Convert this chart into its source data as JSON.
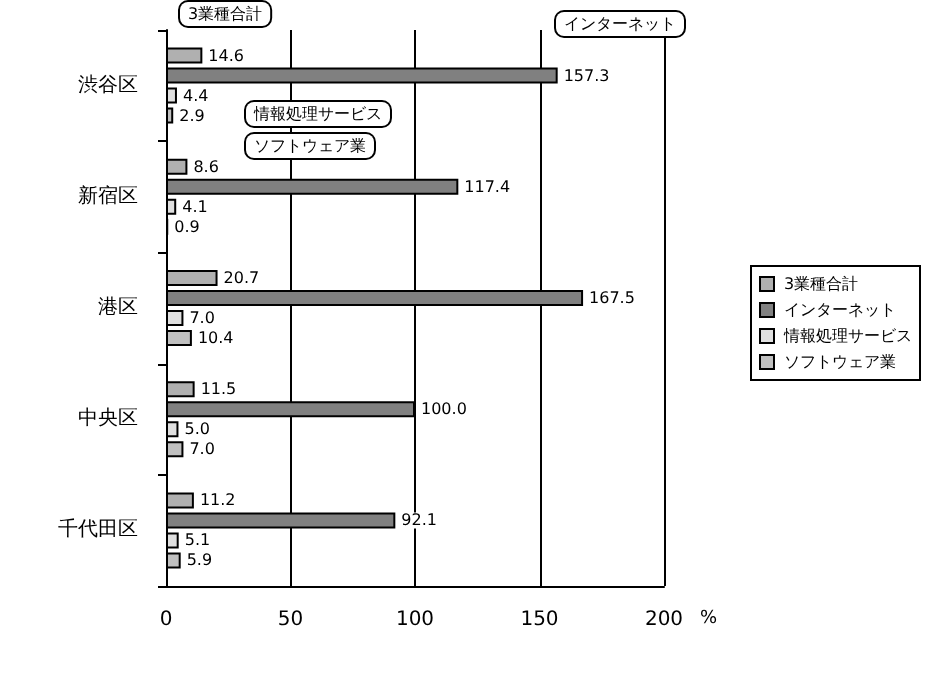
{
  "chart_data": {
    "type": "bar",
    "orientation": "horizontal",
    "categories": [
      "渋谷区",
      "新宿区",
      "港区",
      "中央区",
      "千代田区"
    ],
    "series": [
      {
        "name": "3業種合計",
        "color": "#b0b0b0",
        "values": [
          14.6,
          8.6,
          20.7,
          11.5,
          11.2
        ],
        "value_labels": [
          "14.6",
          "8.6",
          "20.7",
          "11.5",
          "11.2"
        ]
      },
      {
        "name": "インターネット",
        "color": "#808080",
        "values": [
          157.3,
          117.4,
          167.5,
          100.0,
          92.1
        ],
        "value_labels": [
          "157.3",
          "117.4",
          "167.5",
          "100.0",
          "92.1"
        ]
      },
      {
        "name": "情報処理サービス",
        "color": "#e0e0e0",
        "values": [
          4.4,
          4.1,
          7.0,
          5.0,
          5.1
        ],
        "value_labels": [
          "4.4",
          "4.1",
          "7.0",
          "5.0",
          "5.1"
        ]
      },
      {
        "name": "ソフトウェア業",
        "color": "#c0c0c0",
        "values": [
          2.9,
          0.9,
          10.4,
          7.0,
          5.9
        ],
        "value_labels": [
          "2.9",
          "0.9",
          "10.4",
          "7.0",
          "5.9"
        ]
      }
    ],
    "xlabel": "%",
    "xlim": [
      0,
      200
    ],
    "xticks": [
      0,
      50,
      100,
      150,
      200
    ],
    "grid": "x",
    "legend": "right",
    "annotations": [
      "3業種合計",
      "インターネット",
      "情報処理サービス",
      "ソフトウェア業"
    ]
  }
}
